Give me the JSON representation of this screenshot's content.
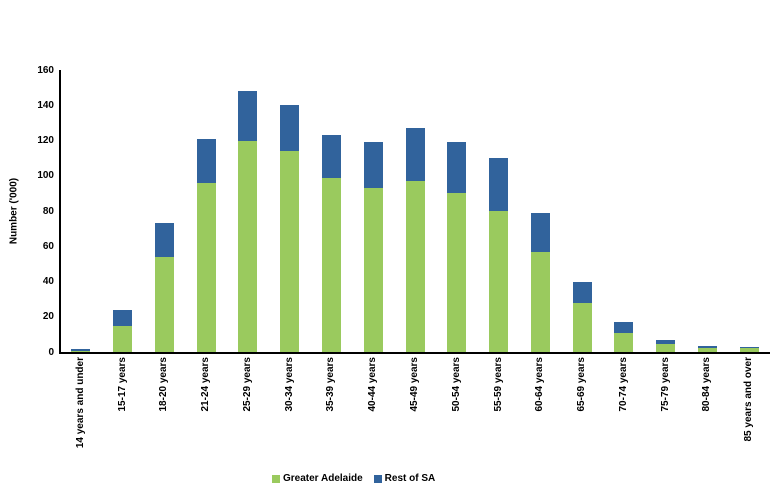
{
  "chart_data": {
    "type": "bar",
    "stacked": true,
    "title": "",
    "xlabel": "",
    "ylabel": "Number ('000)",
    "ylim": [
      0,
      160
    ],
    "yticks": [
      0,
      20,
      40,
      60,
      80,
      100,
      120,
      140,
      160
    ],
    "grid": false,
    "legend_position": "bottom-center",
    "x_label_rotation": -90,
    "axis_color": "#000000",
    "categories": [
      "14 years and under",
      "15-17 years",
      "18-20 years",
      "21-24 years",
      "25-29 years",
      "30-34 years",
      "35-39 years",
      "40-44 years",
      "45-49 years",
      "50-54 years",
      "55-59 years",
      "60-64 years",
      "65-69 years",
      "70-74 years",
      "75-79 years",
      "80-84 years",
      "85 years and over"
    ],
    "series": [
      {
        "name": "Greater Adelaide",
        "color": "#9ACA5E",
        "values": [
          0.3,
          15,
          54,
          96,
          120,
          114,
          99,
          93,
          97,
          90,
          80,
          57,
          28,
          11,
          4.5,
          2,
          2
        ]
      },
      {
        "name": "Rest of SA",
        "color": "#31639C",
        "values": [
          1.2,
          9,
          19,
          25,
          28,
          26,
          24,
          26,
          30,
          29,
          30,
          22,
          12,
          6,
          2.5,
          1.5,
          1
        ]
      }
    ]
  }
}
